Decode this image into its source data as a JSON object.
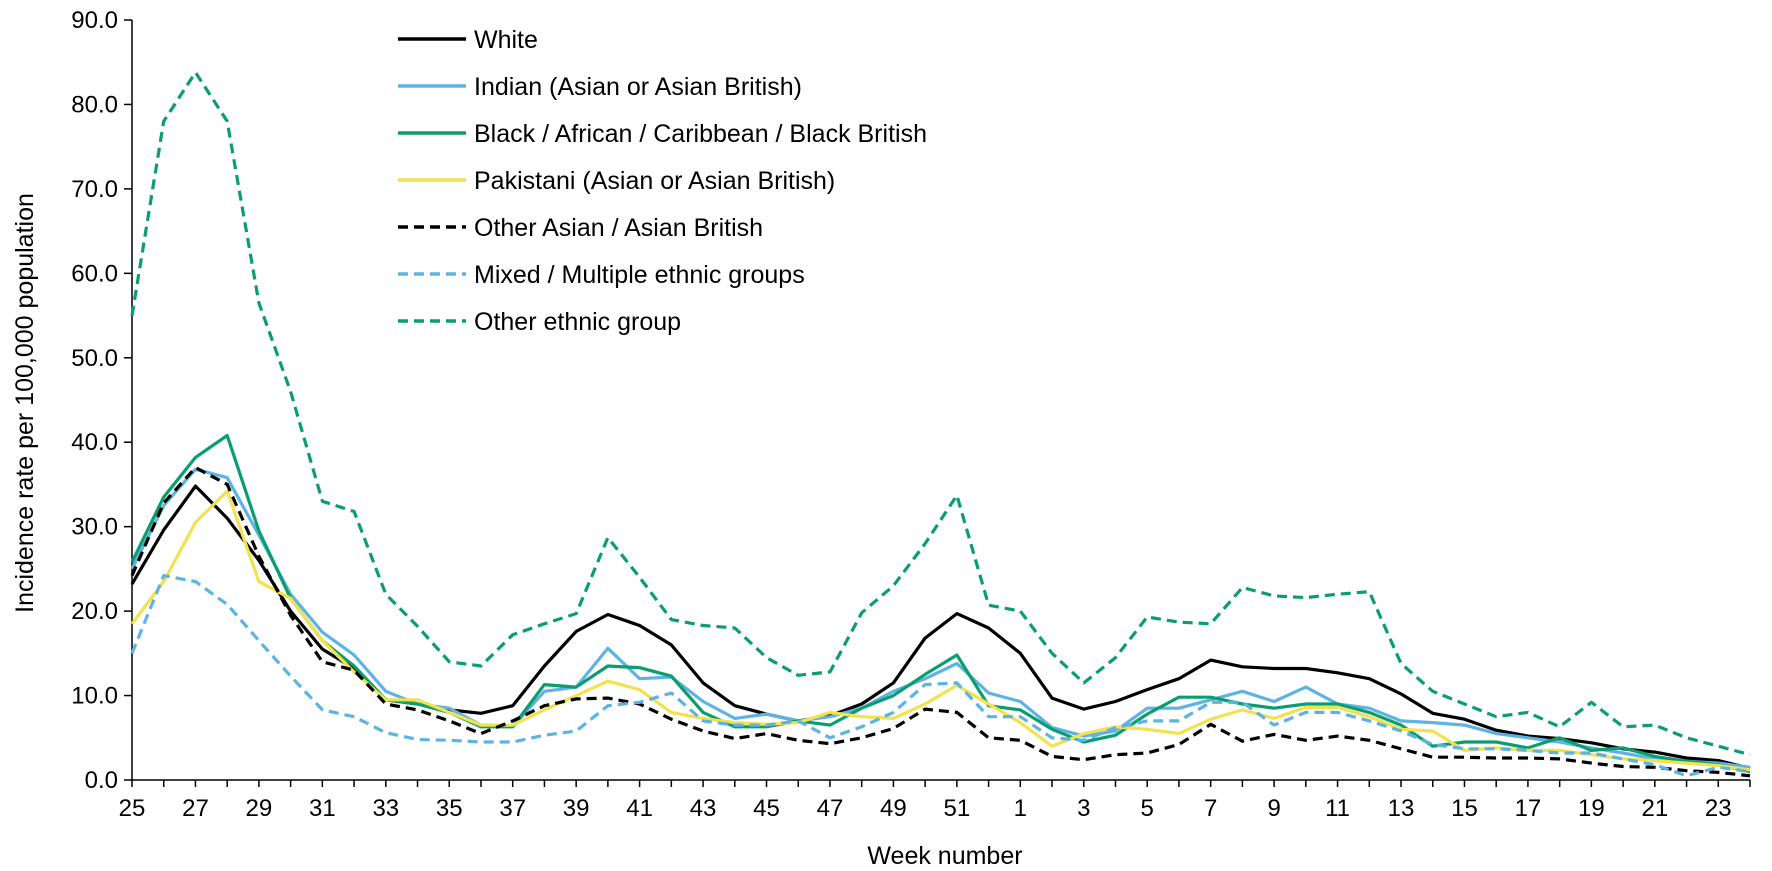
{
  "chart_data": {
    "type": "line",
    "xlabel": "Week number",
    "ylabel": "Incidence rate per 100,000 population",
    "ylim": [
      0,
      90
    ],
    "y_ticks": [
      "0.0",
      "10.0",
      "20.0",
      "30.0",
      "40.0",
      "50.0",
      "60.0",
      "70.0",
      "80.0",
      "90.0"
    ],
    "x": [
      "25",
      "26",
      "27",
      "28",
      "29",
      "30",
      "31",
      "32",
      "33",
      "34",
      "35",
      "36",
      "37",
      "38",
      "39",
      "40",
      "41",
      "42",
      "43",
      "44",
      "45",
      "46",
      "47",
      "48",
      "49",
      "50",
      "51",
      "52",
      "1",
      "2",
      "3",
      "4",
      "5",
      "6",
      "7",
      "8",
      "9",
      "10",
      "11",
      "12",
      "13",
      "14",
      "15",
      "16",
      "17",
      "18",
      "19",
      "20",
      "21",
      "22",
      "23",
      "24"
    ],
    "x_tick_labels": [
      "25",
      "27",
      "29",
      "31",
      "33",
      "35",
      "37",
      "39",
      "41",
      "43",
      "45",
      "47",
      "49",
      "51",
      "1",
      "3",
      "5",
      "7",
      "9",
      "11",
      "13",
      "15",
      "17",
      "19",
      "21",
      "23"
    ],
    "legend_position": "top-left",
    "series": [
      {
        "name": "White",
        "color": "#000000",
        "dash": "solid",
        "values": [
          23.2,
          29.6,
          34.8,
          31.0,
          26.0,
          20.0,
          15.5,
          13.2,
          9.5,
          9.0,
          8.3,
          7.9,
          8.8,
          13.5,
          17.6,
          19.6,
          18.3,
          16.0,
          11.5,
          8.8,
          7.8,
          7.0,
          7.6,
          9.0,
          11.5,
          16.8,
          19.7,
          18.0,
          15.0,
          9.7,
          8.4,
          9.3,
          10.7,
          12.0,
          14.2,
          13.4,
          13.2,
          13.2,
          12.7,
          12.0,
          10.2,
          7.9,
          7.2,
          5.9,
          5.2,
          4.9,
          4.4,
          3.7,
          3.3,
          2.6,
          2.3,
          1.4
        ]
      },
      {
        "name": "Indian (Asian or Asian British)",
        "color": "#5DB3E4",
        "dash": "solid",
        "values": [
          25.0,
          32.5,
          36.8,
          35.8,
          29.0,
          22.0,
          17.5,
          14.8,
          10.5,
          9.0,
          8.5,
          6.5,
          6.3,
          10.5,
          11.0,
          15.6,
          12.0,
          12.2,
          9.3,
          7.3,
          7.8,
          7.0,
          7.5,
          8.5,
          10.5,
          12.0,
          13.8,
          10.3,
          9.3,
          6.2,
          5.2,
          5.8,
          8.5,
          8.5,
          9.5,
          10.5,
          9.3,
          11.0,
          9.0,
          8.5,
          7.0,
          6.8,
          6.5,
          5.5,
          5.0,
          4.5,
          3.8,
          3.2,
          2.5,
          2.2,
          2.0,
          1.5
        ]
      },
      {
        "name": "Black / African / Caribbean / Black British",
        "color": "#0A9E6E",
        "dash": "solid",
        "values": [
          25.8,
          33.5,
          38.2,
          40.8,
          29.5,
          21.5,
          16.5,
          13.5,
          9.5,
          9.0,
          8.0,
          6.3,
          6.3,
          11.3,
          11.0,
          13.5,
          13.3,
          12.3,
          8.0,
          6.3,
          6.3,
          7.0,
          6.5,
          8.5,
          10.0,
          12.5,
          14.8,
          8.8,
          8.3,
          6.0,
          4.5,
          5.3,
          7.8,
          9.8,
          9.8,
          9.0,
          8.5,
          9.0,
          9.0,
          8.0,
          6.5,
          4.0,
          4.5,
          4.5,
          3.8,
          5.0,
          3.5,
          3.8,
          2.8,
          2.2,
          1.8,
          1.0
        ]
      },
      {
        "name": "Pakistani (Asian or Asian British)",
        "color": "#F2E24E",
        "dash": "solid",
        "values": [
          18.5,
          23.5,
          30.5,
          34.2,
          23.5,
          21.5,
          16.5,
          12.8,
          9.5,
          9.5,
          8.0,
          6.5,
          6.5,
          8.3,
          10.0,
          11.7,
          10.7,
          8.0,
          7.3,
          6.8,
          6.6,
          6.8,
          8.0,
          7.5,
          7.3,
          9.0,
          11.2,
          9.0,
          6.8,
          4.0,
          5.5,
          6.3,
          6.0,
          5.5,
          7.2,
          8.3,
          7.3,
          8.6,
          8.6,
          7.5,
          6.0,
          5.8,
          3.5,
          3.8,
          3.5,
          3.5,
          3.0,
          2.5,
          2.3,
          2.0,
          1.7,
          1.2
        ]
      },
      {
        "name": "Other Asian / Asian British",
        "color": "#000000",
        "dash": "dashed",
        "values": [
          24.2,
          32.8,
          37.0,
          35.0,
          26.5,
          19.5,
          14.0,
          13.0,
          9.0,
          8.3,
          7.0,
          5.5,
          7.0,
          8.8,
          9.6,
          9.7,
          9.0,
          7.2,
          5.8,
          4.9,
          5.5,
          4.7,
          4.3,
          5.0,
          6.1,
          8.4,
          8.0,
          5.0,
          4.7,
          2.8,
          2.4,
          3.0,
          3.2,
          4.2,
          6.6,
          4.6,
          5.4,
          4.7,
          5.2,
          4.7,
          3.7,
          2.7,
          2.7,
          2.6,
          2.6,
          2.5,
          2.0,
          1.6,
          1.5,
          1.1,
          0.9,
          0.5
        ]
      },
      {
        "name": "Mixed / Multiple ethnic groups",
        "color": "#5DB3E4",
        "dash": "dashed",
        "values": [
          15.0,
          24.2,
          23.5,
          20.8,
          16.5,
          12.3,
          8.3,
          7.5,
          5.6,
          4.8,
          4.7,
          4.5,
          4.5,
          5.3,
          5.8,
          8.8,
          9.2,
          10.3,
          7.0,
          6.5,
          6.5,
          7.0,
          5.0,
          6.3,
          8.0,
          11.3,
          11.5,
          7.5,
          7.5,
          5.0,
          4.7,
          6.2,
          7.0,
          7.0,
          9.2,
          9.2,
          6.5,
          8.0,
          8.0,
          7.0,
          5.8,
          4.2,
          3.7,
          3.7,
          3.5,
          3.2,
          3.2,
          2.5,
          1.8,
          0.5,
          1.5,
          1.0
        ]
      },
      {
        "name": "Other ethnic group",
        "color": "#0A9E6E",
        "dash": "dashed",
        "values": [
          55.0,
          78.0,
          83.8,
          78.0,
          56.5,
          46.0,
          33.0,
          31.8,
          22.0,
          18.2,
          14.0,
          13.5,
          17.2,
          18.5,
          19.7,
          28.7,
          24.0,
          19.0,
          18.3,
          18.0,
          14.5,
          12.4,
          12.8,
          19.8,
          23.0,
          28.0,
          33.7,
          20.7,
          20.0,
          15.0,
          11.5,
          14.5,
          19.3,
          18.7,
          18.5,
          22.8,
          21.8,
          21.6,
          22.0,
          22.3,
          13.8,
          10.5,
          9.0,
          7.5,
          8.0,
          6.3,
          9.2,
          6.3,
          6.5,
          5.0,
          4.0,
          3.0
        ]
      }
    ]
  }
}
